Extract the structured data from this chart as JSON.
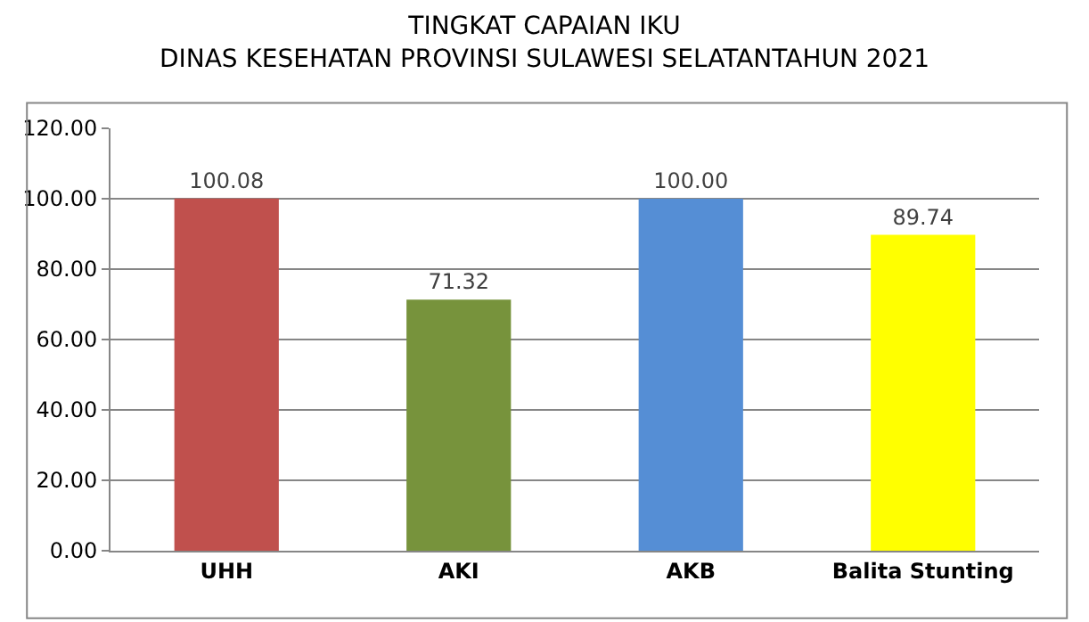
{
  "chart_data": {
    "type": "bar",
    "title": "TINGKAT CAPAIAN IKU\nDINAS KESEHATAN PROVINSI SULAWESI SELATANTAHUN 2021",
    "categories": [
      "UHH",
      "AKI",
      "AKB",
      "Balita Stunting"
    ],
    "values": [
      100.08,
      71.32,
      100.0,
      89.74
    ],
    "colors": [
      "#c0504d",
      "#77933c",
      "#558ed5",
      "#ffff00"
    ],
    "value_labels": [
      "100.08",
      "71.32",
      "100.00",
      "89.74"
    ],
    "ylim": [
      0,
      120
    ],
    "yticks": [
      {
        "value": 0,
        "label": "0.00"
      },
      {
        "value": 20,
        "label": "20.00"
      },
      {
        "value": 40,
        "label": "40.00"
      },
      {
        "value": 60,
        "label": "60.00"
      },
      {
        "value": 80,
        "label": "80.00"
      },
      {
        "value": 100,
        "label": "100.00"
      },
      {
        "value": 120,
        "label": "120.00"
      }
    ],
    "grid": "y"
  }
}
